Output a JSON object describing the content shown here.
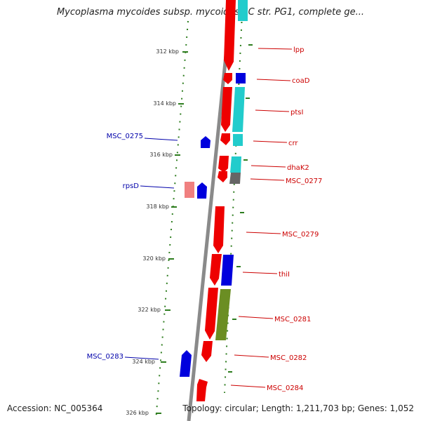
{
  "title": "Mycoplasma mycoides subsp. mycoides SC str. PG1, complete ge...",
  "footer": {
    "accession": "Accession: NC_005364",
    "summary": "Topology: circular; Length: 1,211,703 bp; Genes: 1,052"
  },
  "colors": {
    "backbone": "#8a8a8a",
    "tick": "#2e7d1f",
    "cds_red": "#ee0000",
    "cds_blue": "#0000dd",
    "cds_cyan": "#22cccc",
    "cds_grey": "#666666",
    "cds_olive": "#6b8e23",
    "cds_pink": "#f08080",
    "label_red": "#cc0000",
    "label_blue": "#0000aa"
  },
  "kbp_marks": [
    "312 kbp",
    "314 kbp",
    "316 kbp",
    "318 kbp",
    "320 kbp",
    "322 kbp",
    "324 kbp",
    "326 kbp"
  ],
  "genes": [
    {
      "label": "lpp",
      "side": "right",
      "color": "red"
    },
    {
      "label": "coaD",
      "side": "right",
      "color": "red"
    },
    {
      "label": "ptsI",
      "side": "right",
      "color": "red"
    },
    {
      "label": "crr",
      "side": "right",
      "color": "red"
    },
    {
      "label": "dhaK2",
      "side": "right",
      "color": "red"
    },
    {
      "label": "MSC_0277",
      "side": "right",
      "color": "red"
    },
    {
      "label": "MSC_0279",
      "side": "right",
      "color": "red"
    },
    {
      "label": "thiI",
      "side": "right",
      "color": "red"
    },
    {
      "label": "MSC_0281",
      "side": "right",
      "color": "red"
    },
    {
      "label": "MSC_0282",
      "side": "right",
      "color": "red"
    },
    {
      "label": "MSC_0284",
      "side": "right",
      "color": "red"
    },
    {
      "label": "MSC_0275",
      "side": "left",
      "color": "blue"
    },
    {
      "label": "rpsD",
      "side": "left",
      "color": "blue"
    },
    {
      "label": "MSC_0283",
      "side": "left",
      "color": "blue"
    }
  ]
}
